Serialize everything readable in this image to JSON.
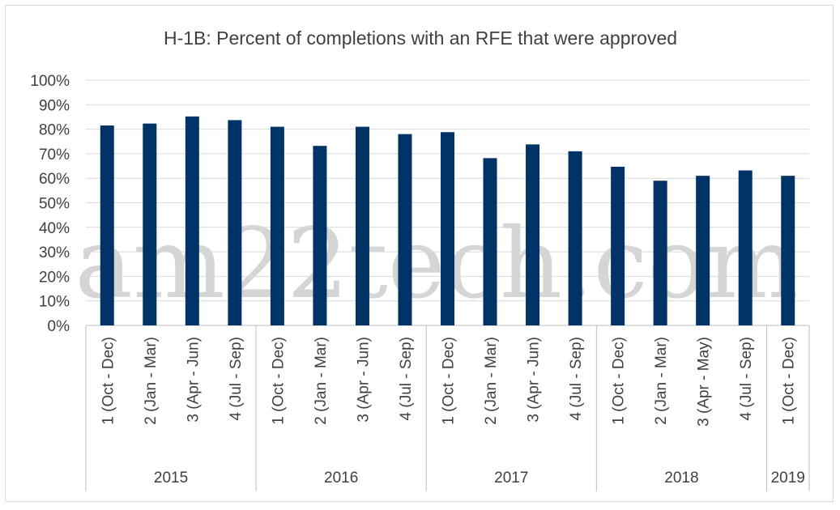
{
  "watermark": "am22tech.com",
  "colors": {
    "bar": "#003366",
    "grid": "#d9d9d9",
    "text": "#404040"
  },
  "chart_data": {
    "type": "bar",
    "title": "H-1B: Percent of completions with an RFE that were approved",
    "xlabel": "",
    "ylabel": "",
    "ylim": [
      0,
      100
    ],
    "yticks": [
      "0%",
      "10%",
      "20%",
      "30%",
      "40%",
      "50%",
      "60%",
      "70%",
      "80%",
      "90%",
      "100%"
    ],
    "grid": true,
    "legend": "none",
    "categories": [
      "1 (Oct - Dec)",
      "2 (Jan - Mar)",
      "3 (Apr - Jun)",
      "4 (Jul - Sep)",
      "1 (Oct - Dec)",
      "2 (Jan - Mar)",
      "3 (Apr - Jun)",
      "4 (Jul - Sep)",
      "1 (Oct - Dec)",
      "2 (Jan - Mar)",
      "3 (Apr - Jun)",
      "4 (Jul - Sep)",
      "1 (Oct - Dec)",
      "2 (Jan - Mar)",
      "3 (Apr - May)",
      "4 (Jul - Sep)",
      "1 (Oct - Dec)"
    ],
    "groups": [
      {
        "label": "2015",
        "count": 4
      },
      {
        "label": "2016",
        "count": 4
      },
      {
        "label": "2017",
        "count": 4
      },
      {
        "label": "2018",
        "count": 4
      },
      {
        "label": "2019",
        "count": 1
      }
    ],
    "values": [
      81.5,
      82.3,
      85.2,
      83.7,
      81.0,
      73.2,
      81.0,
      78.0,
      78.8,
      68.2,
      73.8,
      71.0,
      64.7,
      59.0,
      61.0,
      63.2,
      61.0
    ]
  }
}
